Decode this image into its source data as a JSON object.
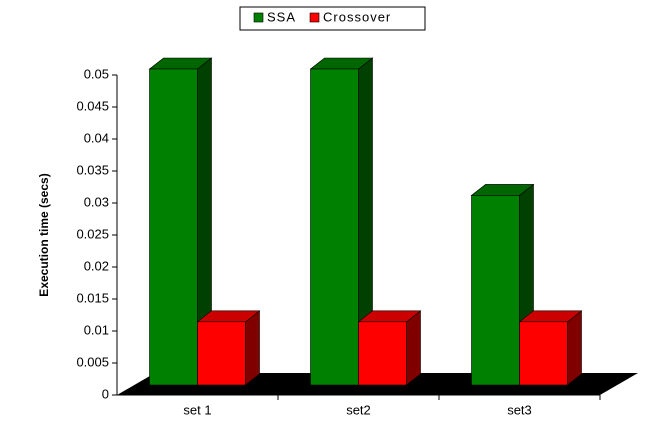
{
  "chart_data": {
    "type": "bar3d",
    "y_label": "Execution time (secs)",
    "categories": [
      "set 1",
      "set2",
      "set3"
    ],
    "series": [
      {
        "name": "SSA",
        "color": "#008000",
        "values": [
          0.05,
          0.05,
          0.03
        ]
      },
      {
        "name": "Crossover",
        "color": "#ff0000",
        "values": [
          0.01,
          0.01,
          0.01
        ]
      }
    ],
    "ylim": [
      0,
      0.05
    ],
    "yticks": [
      0,
      0.005,
      0.01,
      0.015,
      0.02,
      0.025,
      0.03,
      0.035,
      0.04,
      0.045,
      0.05
    ],
    "legend": "top"
  }
}
